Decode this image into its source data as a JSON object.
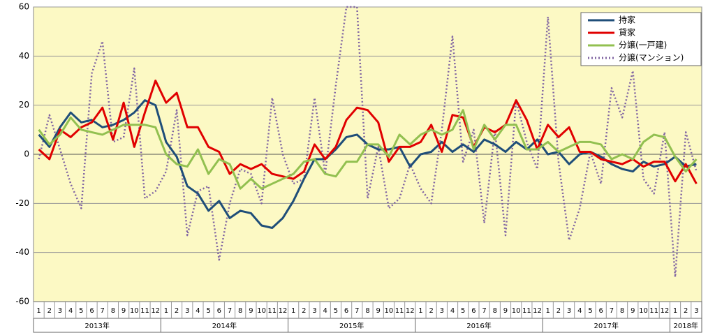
{
  "chart_data": {
    "type": "line",
    "categories": [
      "1",
      "2",
      "3",
      "4",
      "5",
      "6",
      "7",
      "8",
      "9",
      "10",
      "11",
      "12",
      "1",
      "2",
      "3",
      "4",
      "5",
      "6",
      "7",
      "8",
      "9",
      "10",
      "11",
      "12",
      "1",
      "2",
      "3",
      "4",
      "5",
      "6",
      "7",
      "8",
      "9",
      "10",
      "11",
      "12",
      "1",
      "2",
      "3",
      "4",
      "5",
      "6",
      "7",
      "8",
      "9",
      "10",
      "11",
      "12",
      "1",
      "2",
      "3",
      "4",
      "5",
      "6",
      "7",
      "8",
      "9",
      "10",
      "11",
      "12",
      "1",
      "2",
      "3"
    ],
    "years": [
      "2013年",
      "2014年",
      "2015年",
      "2016年",
      "2017年",
      "2018年"
    ],
    "ylim": [
      -60,
      60
    ],
    "yticks": [
      -60,
      -40,
      -20,
      0,
      20,
      40,
      60
    ],
    "grid": true,
    "legend": "upper right",
    "series": [
      {
        "name": "持家",
        "color": "#1f4e79",
        "dash": false,
        "values": [
          8,
          3,
          11,
          17,
          13,
          14,
          11,
          12,
          14,
          17,
          22,
          20,
          5,
          -1,
          -13,
          -16,
          -23,
          -19,
          -26,
          -23,
          -24,
          -29,
          -30,
          -26,
          -19,
          -10,
          -2,
          -2,
          2,
          7,
          8,
          4,
          2,
          2,
          3,
          -5,
          0,
          1,
          5,
          1,
          4,
          1,
          6,
          4,
          1,
          5,
          2,
          6,
          0,
          1,
          -4,
          0,
          1,
          -1,
          -4,
          -6,
          -7,
          -3,
          -5,
          -4,
          -1,
          -5,
          -4
        ]
      },
      {
        "name": "貸家",
        "color": "#e00000",
        "dash": false,
        "values": [
          2,
          -2,
          10,
          7,
          11,
          13,
          19,
          6,
          21,
          3,
          17,
          30,
          21,
          25,
          11,
          11,
          3,
          1,
          -8,
          -4,
          -6,
          -4,
          -8,
          -9,
          -10,
          -7,
          4,
          -2,
          3,
          14,
          19,
          18,
          13,
          -3,
          3,
          3,
          5,
          12,
          1,
          16,
          15,
          3,
          11,
          9,
          12,
          22,
          14,
          2,
          12,
          7,
          11,
          1,
          1,
          -2,
          -3,
          -4,
          -2,
          -5,
          -3,
          -3,
          -11,
          -4,
          -12
        ]
      },
      {
        "name": "分譲(一戸建)",
        "color": "#92c050",
        "dash": false,
        "values": [
          10,
          4,
          8,
          15,
          10,
          9,
          8,
          10,
          12,
          12,
          12,
          11,
          0,
          -4,
          -5,
          2,
          -8,
          -2,
          -4,
          -14,
          -10,
          -14,
          -12,
          -10,
          -8,
          -3,
          -2,
          -8,
          -9,
          -3,
          -3,
          4,
          4,
          -1,
          8,
          4,
          8,
          10,
          8,
          10,
          18,
          2,
          12,
          6,
          12,
          12,
          2,
          2,
          5,
          1,
          3,
          5,
          5,
          4,
          -2,
          0,
          -2,
          5,
          8,
          7,
          -1,
          -7,
          -2
        ]
      },
      {
        "name": "分譲(マンション)",
        "color": "#8064a2",
        "dash": true,
        "values": [
          -2,
          16,
          2,
          -12,
          -22,
          33,
          46,
          5,
          7,
          35,
          -18,
          -15,
          -7,
          18,
          -33,
          -15,
          -13,
          -43,
          -20,
          -6,
          -8,
          -20,
          23,
          0,
          -12,
          -10,
          23,
          -8,
          28,
          60,
          60,
          -18,
          3,
          -22,
          -18,
          -4,
          -14,
          -20,
          10,
          48,
          -3,
          10,
          -28,
          10,
          -33,
          22,
          5,
          -6,
          56,
          -3,
          -35,
          -22,
          1,
          -12,
          27,
          15,
          34,
          -10,
          -16,
          9,
          -50,
          9,
          -7
        ]
      }
    ]
  }
}
